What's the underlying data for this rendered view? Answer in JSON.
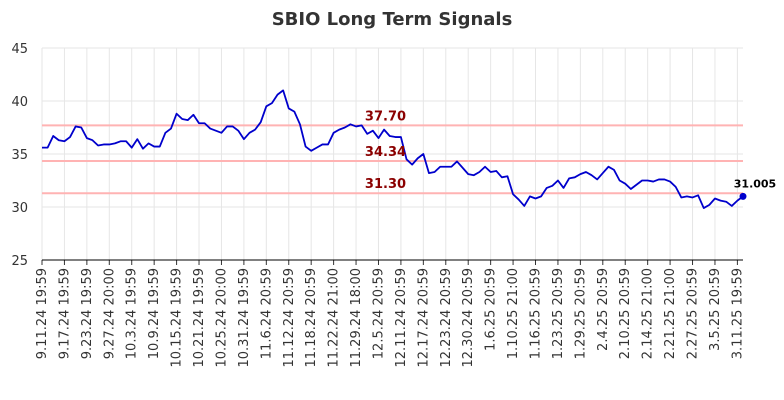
{
  "chart_data": {
    "type": "line",
    "title": "SBIO Long Term Signals",
    "xlabel": "",
    "ylabel": "",
    "ylim": [
      25,
      45
    ],
    "y_ticks": [
      25,
      30,
      35,
      40,
      45
    ],
    "grid": true,
    "colors": {
      "line": "#0000cc",
      "level": "#ffb3b3",
      "level_label": "#8b0000",
      "grid": "#e6e6e6"
    },
    "x_tick_labels": [
      "9.11.24 19:59",
      "9.17.24 19:59",
      "9.23.24 19:59",
      "9.27.24 20:00",
      "10.3.24 19:59",
      "10.9.24 19:59",
      "10.15.24 19:59",
      "10.21.24 19:59",
      "10.25.24 20:00",
      "10.31.24 19:59",
      "11.6.24 20:59",
      "11.12.24 20:59",
      "11.18.24 20:59",
      "11.22.24 21:00",
      "11.29.24 18:00",
      "12.5.24 20:59",
      "12.11.24 20:59",
      "12.17.24 20:59",
      "12.23.24 20:59",
      "12.30.24 20:59",
      "1.6.25 20:59",
      "1.10.25 21:00",
      "1.16.25 20:59",
      "1.23.25 20:59",
      "1.29.25 20:59",
      "2.4.25 20:59",
      "2.10.25 20:59",
      "2.14.25 21:00",
      "2.21.25 21:00",
      "2.27.25 20:59",
      "3.5.25 20:59",
      "3.11.25 19:59"
    ],
    "points_per_tick": 4,
    "values": [
      35.6,
      35.6,
      36.7,
      36.3,
      36.2,
      36.6,
      37.6,
      37.5,
      36.5,
      36.3,
      35.8,
      35.9,
      35.9,
      36.0,
      36.2,
      36.2,
      35.6,
      36.4,
      35.5,
      36.0,
      35.7,
      35.7,
      37.0,
      37.4,
      38.8,
      38.3,
      38.2,
      38.7,
      37.9,
      37.9,
      37.4,
      37.2,
      37.0,
      37.6,
      37.6,
      37.2,
      36.4,
      37.0,
      37.3,
      38.0,
      39.5,
      39.8,
      40.6,
      41.0,
      39.3,
      39.0,
      37.8,
      35.7,
      35.3,
      35.6,
      35.9,
      35.9,
      37.0,
      37.3,
      37.5,
      37.8,
      37.6,
      37.7,
      36.9,
      37.2,
      36.5,
      37.3,
      36.7,
      36.6,
      36.6,
      34.5,
      34.0,
      34.6,
      35.0,
      33.2,
      33.3,
      33.8,
      33.8,
      33.8,
      34.3,
      33.7,
      33.1,
      33.0,
      33.3,
      33.8,
      33.3,
      33.4,
      32.8,
      32.9,
      31.2,
      30.7,
      30.1,
      31.0,
      30.8,
      31.0,
      31.8,
      32.0,
      32.5,
      31.8,
      32.7,
      32.8,
      33.1,
      33.3,
      33.0,
      32.6,
      33.2,
      33.8,
      33.5,
      32.5,
      32.2,
      31.7,
      32.1,
      32.5,
      32.5,
      32.4,
      32.6,
      32.6,
      32.4,
      31.9,
      30.9,
      31.0,
      30.9,
      31.1,
      29.9,
      30.2,
      30.8,
      30.6,
      30.5,
      30.1,
      30.6,
      31.005
    ],
    "levels": [
      {
        "value": 37.7,
        "label": "37.70"
      },
      {
        "value": 34.34,
        "label": "34.34"
      },
      {
        "value": 31.3,
        "label": "31.30"
      }
    ],
    "last_value_label": "31.005"
  }
}
